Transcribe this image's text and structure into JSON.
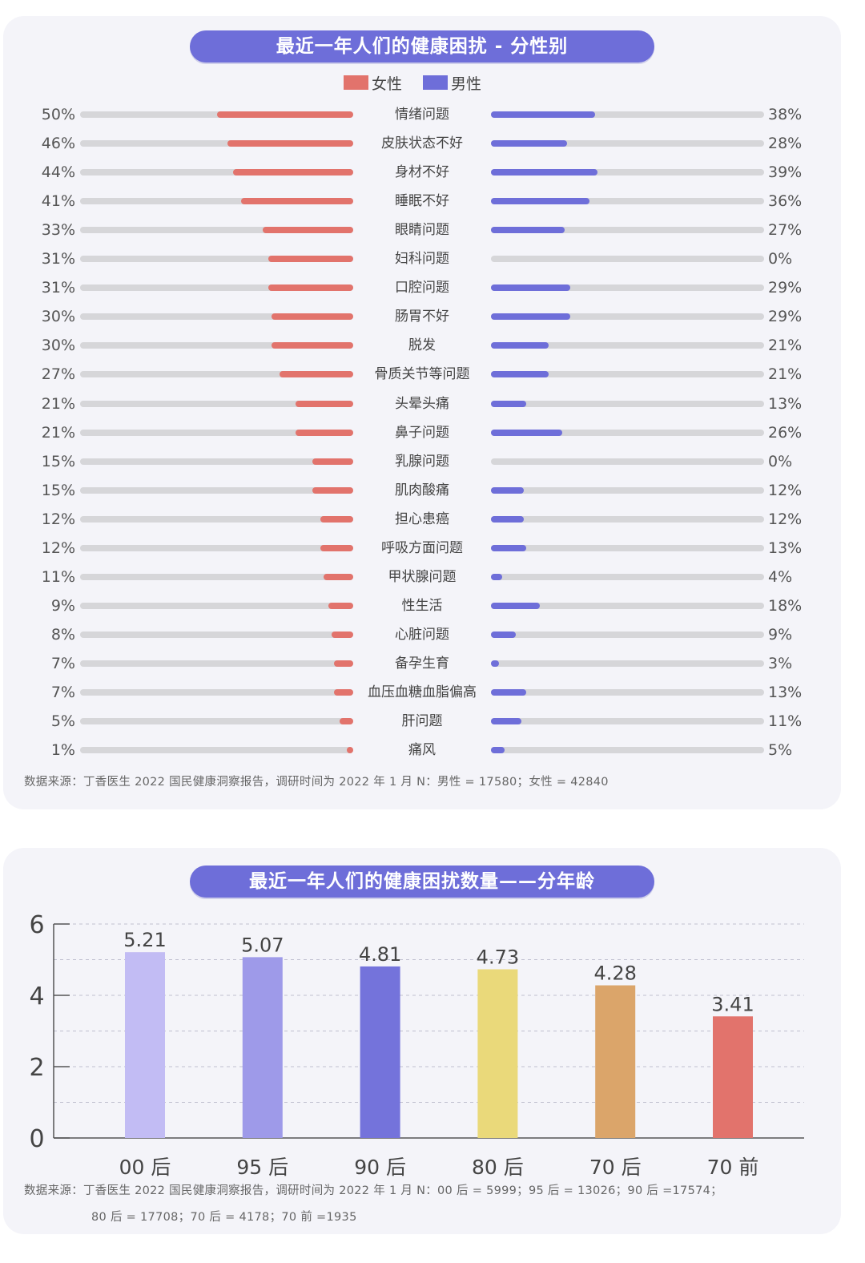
{
  "chart_data": [
    {
      "type": "bar",
      "orientation": "horizontal-diverging",
      "title": "最近一年人们的健康困扰 - 分性别",
      "legend": [
        "女性",
        "男性"
      ],
      "legend_position": "top-center",
      "colors": {
        "female": "#e2736c",
        "male": "#6e6ed9",
        "track": "#d6d6d9"
      },
      "categories": [
        "情绪问题",
        "皮肤状态不好",
        "身材不好",
        "睡眠不好",
        "眼睛问题",
        "妇科问题",
        "口腔问题",
        "肠胃不好",
        "脱发",
        "骨质关节等问题",
        "头晕头痛",
        "鼻子问题",
        "乳腺问题",
        "肌肉酸痛",
        "担心患癌",
        "呼吸方面问题",
        "甲状腺问题",
        "性生活",
        "心脏问题",
        "备孕生育",
        "血压血糖血脂偏高",
        "肝问题",
        "痛风"
      ],
      "series": [
        {
          "name": "女性",
          "values": [
            50,
            46,
            44,
            41,
            33,
            31,
            31,
            30,
            30,
            27,
            21,
            21,
            15,
            15,
            12,
            12,
            11,
            9,
            8,
            7,
            7,
            5,
            1
          ]
        },
        {
          "name": "男性",
          "values": [
            38,
            28,
            39,
            36,
            27,
            0,
            29,
            29,
            21,
            21,
            13,
            26,
            0,
            12,
            12,
            13,
            4,
            18,
            9,
            3,
            13,
            11,
            5
          ]
        }
      ],
      "unit": "%",
      "source": "数据来源：丁香医生 2022 国民健康洞察报告，调研时间为 2022 年 1 月 N：男性 = 17580；女性 = 42840"
    },
    {
      "type": "bar",
      "title": "最近一年人们的健康困扰数量——分年龄",
      "categories": [
        "00 后",
        "95 后",
        "90 后",
        "80 后",
        "70 后",
        "70 前"
      ],
      "values": [
        5.21,
        5.07,
        4.81,
        4.73,
        4.28,
        3.41
      ],
      "colors": [
        "#c2bcf4",
        "#9e9ae9",
        "#7473db",
        "#ead97a",
        "#dba56a",
        "#e2736c"
      ],
      "ylim": [
        0,
        6
      ],
      "yticks": [
        0,
        2,
        4,
        6
      ],
      "grid": "horizontal-dashed",
      "xlabel": "",
      "ylabel": "",
      "source_lines": [
        "数据来源：丁香医生 2022 国民健康洞察报告，调研时间为 2022 年 1 月 N：00 后 = 5999；95 后 = 13026；90 后 =17574；",
        "80 后 = 17708；70 后 = 4178；70 前 =1935"
      ]
    }
  ]
}
